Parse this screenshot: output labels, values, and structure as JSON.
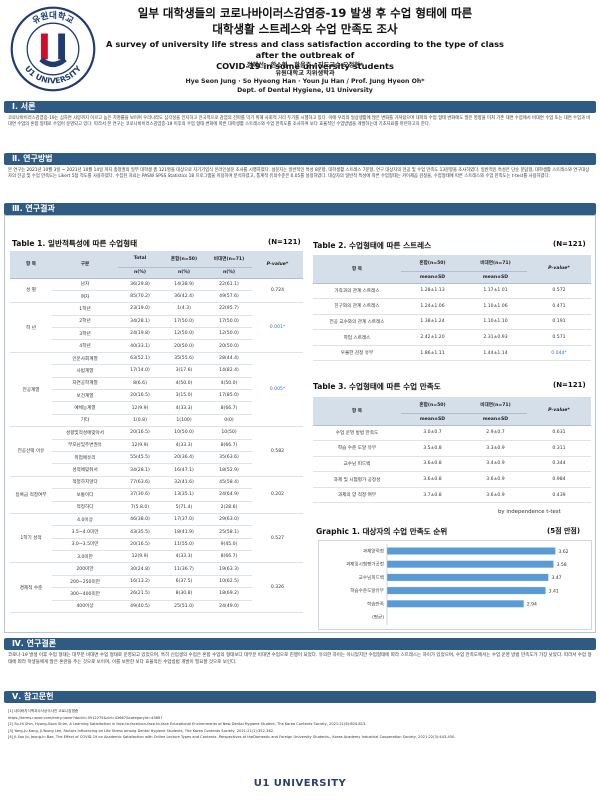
{
  "header": {
    "title_ko": "일부 대학생들의 코로나바이러스감염증-19 발생 후 수업 형태에 따른",
    "title_ko2": "대학생활 스트레스와 수업 만족도 조사",
    "title_en": "A survey of university life stress and class satisfaction according to the type of class after the outbreak of",
    "title_en2": "COVID-19 in some university students",
    "authors_ko": "정혜선 · 한소형 · 한윤주 / 지도교수 오정현*",
    "dept_ko": "유원대학교 치위생학과",
    "authors_en": "Hye Seon Jung · So Hyeong Han · Youn Ju Han / Prof. Jung Hyeon Oh*",
    "dept_en": "Dept. of Dental Hygiene, U1 University",
    "logo_ring_top": "유원대학교",
    "logo_ring_bottom": "U1 UNIVERSITY"
  },
  "sections": {
    "s1": "Ⅰ. 서론",
    "s2": "Ⅱ. 연구방법",
    "s3": "Ⅲ. 연구결과",
    "s4": "Ⅳ. 연구결론",
    "s5": "Ⅴ. 참고문헌"
  },
  "intro_text": "코로나바이러스감염증-19는 심하면 사망까지 이르고 높은 치명률을 보이며 우리나라도 심각성을 인지하고 전국적으로 감염의 전파를 막기 위해 사회적 거리 두기를 시행하고 있다. 이에 우리의 일상생활에 많은 변화를 가져왔으며 대학의 수업 형태 변화에도 많은 영향을 미쳐 기존 대면 수업에서 비대면 수업 또는 대면 수업과 비대면 수업의 혼합 형태로 수업이 운영되고 있다. 따라서 본 연구는 코로나바이러스감염증-19 이후의 수업 형태 변화에 따른 대학생활 스트레스와 수업 만족도를 조사하여 보다 효율적인 수업방법을 개발하는데 기초자료를 마련하고자 한다.",
  "method_text": "본 연구는 2021년 10월 3일 ~ 2021년 10월 14일 까지 충청권의 일부 대학생 총 121명을 대상으로 자기기입식 온라인설문 조사를 시행하였다. 설문지는 일반적인 특성 8문항, 대학생활 스트레스 7문항, 연구 대상자의 전공 및 수업 만족도 13문항을 조사하였다. 일반적인 특성은 단순 문답형, 대학생활 스트레스와 연구대상자의 전공 및 수업 만족도는 Likert 5점 척도를 사용하였다. 수집된 자료는 PASW SPSS Statistics 18 프로그램을 이용하여 분석하였고, 통계적 유의수준은 0.05를 설정하였다. 대상자의 일반적 특성에 따른 수업형태는 카이제곱 검정을, 수업형태에 따른 스트레스와 수업 만족도는 t-test를 사용하였다.",
  "table1": {
    "title": "Table 1. 일반적특성에 따른 수업형태",
    "n": "(N=121)",
    "h_item": "항 목",
    "h_group": "구분",
    "h_total": "Total",
    "h_mixed": "혼합(n=50)",
    "h_online": "비대면(n=71)",
    "h_p": "P-value*",
    "h_sub": "n(%)",
    "rows": [
      {
        "item": "성 별",
        "span": 2,
        "p": "0.724",
        "group": "남자",
        "total": "36(29.8)",
        "mixed": "14(38.9)",
        "online": "22(61.1)"
      },
      {
        "group": "여자",
        "total": "85(70.2)",
        "mixed": "36(42.4)",
        "online": "49(57.6)"
      },
      {
        "item": "학 년",
        "span": 4,
        "p": "0.001*",
        "sig": true,
        "group": "1학년",
        "total": "23(19.0)",
        "mixed": "1(4.3)",
        "online": "22(95.7)"
      },
      {
        "group": "2학년",
        "total": "34(28.1)",
        "mixed": "17(50.0)",
        "online": "17(50.0)"
      },
      {
        "group": "3학년",
        "total": "24(19.8)",
        "mixed": "12(50.0)",
        "online": "12(50.0)"
      },
      {
        "group": "4학년",
        "total": "40(33.1)",
        "mixed": "20(50.0)",
        "online": "20(50.0)"
      },
      {
        "item": "전공계열",
        "span": 6,
        "p": "0.005*",
        "sig": true,
        "group": "인문사회계열",
        "total": "63(52.1)",
        "mixed": "35(55.6)",
        "online": "28(44.4)"
      },
      {
        "group": "사범계열",
        "total": "17(14.0)",
        "mixed": "3(17.6)",
        "online": "14(82.4)"
      },
      {
        "group": "자연공학계열",
        "total": "8(6.6)",
        "mixed": "4(50.0)",
        "online": "4(50.0)"
      },
      {
        "group": "보건계열",
        "total": "20(16.5)",
        "mixed": "3(15.0)",
        "online": "17(85.0)"
      },
      {
        "group": "예체능계열",
        "total": "12(9.9)",
        "mixed": "4(33.3)",
        "online": "8(66.7)"
      },
      {
        "group": "기타",
        "total": "1(0.8)",
        "mixed": "1(100)",
        "online": "0(0)"
      },
      {
        "item": "전공선택 이유",
        "span": 4,
        "p": "0.582",
        "group": "성향및적성에맞아서",
        "total": "20(16.5)",
        "mixed": "10(50.0)",
        "online": "10(50)"
      },
      {
        "group": "부모님및주변권유",
        "total": "12(9.9)",
        "mixed": "4(33.3)",
        "online": "8(66.7)"
      },
      {
        "group": "취업에유리",
        "total": "55(45.5)",
        "mixed": "20(36.4)",
        "online": "35(63.6)"
      },
      {
        "group": "성적에맞춰서",
        "total": "34(28.1)",
        "mixed": "16(47.1)",
        "online": "18(52.9)"
      },
      {
        "item": "등록금 적정여부",
        "span": 3,
        "p": "0.202",
        "group": "적정하지않다",
        "total": "77(63.6)",
        "mixed": "32(41.6)",
        "online": "45(58.4)"
      },
      {
        "group": "보통이다",
        "total": "37(30.6)",
        "mixed": "13(35.1)",
        "online": "24(64.9)"
      },
      {
        "group": "적정하다",
        "total": "7(5.8.0)",
        "mixed": "5(71.4)",
        "online": "2(28.6)"
      },
      {
        "item": "1학기 성적",
        "span": 4,
        "p": "0.527",
        "group": "4.0이상",
        "total": "46(38.0)",
        "mixed": "17(37.0)",
        "online": "29(63.0)"
      },
      {
        "group": "3.5~4.0미만",
        "total": "43(35.5)",
        "mixed": "18(41.9)",
        "online": "25(58.1)"
      },
      {
        "group": "3.0~3.5미만",
        "total": "20(16.5)",
        "mixed": "11(55.0)",
        "online": "9(45.0)"
      },
      {
        "group": "3.0미만",
        "total": "12(9.9)",
        "mixed": "4(33.3)",
        "online": "8(66.7)"
      },
      {
        "item": "경제적 수준",
        "span": 4,
        "p": "0.326",
        "group": "200미만",
        "total": "30(24.8)",
        "mixed": "11(36.7)",
        "online": "19(63.3)"
      },
      {
        "group": "200~250미만",
        "total": "16(13.2)",
        "mixed": "6(37.5)",
        "online": "10(62.5)"
      },
      {
        "group": "300~400미만",
        "total": "26(21.5)",
        "mixed": "8(30.8)",
        "online": "18(69.2)"
      },
      {
        "group": "400이상",
        "total": "49(40.5)",
        "mixed": "25(51.0)",
        "online": "24(49.0)"
      }
    ]
  },
  "table2": {
    "title": "Table 2. 수업형태에 따른 스트레스",
    "n": "(N=121)",
    "h_item": "항 목",
    "h_mixed": "혼합(n=50)",
    "h_online": "비대면(n=71)",
    "h_p": "P-value*",
    "h_sub": "mean±SD",
    "rows": [
      {
        "item": "가족과의 관계 스트레스",
        "mixed": "1.28±1.13",
        "online": "1.17±1.01",
        "p": "0.572"
      },
      {
        "item": "친구와의 관계 스트레스",
        "mixed": "1.24±1.06",
        "online": "1.10±1.06",
        "p": "0.471"
      },
      {
        "item": "전공 교수와의 관계 스트레스",
        "mixed": "1.38±1.24",
        "online": "1.10±1.10",
        "p": "0.191"
      },
      {
        "item": "학업 스트레스",
        "mixed": "2.42±1.20",
        "online": "2.31±0.93",
        "p": "0.571"
      },
      {
        "item": "우울한 감정 유무",
        "mixed": "1.86±1.11",
        "online": "1.44±1.14",
        "p": "0.044*",
        "sig": true
      }
    ]
  },
  "table3": {
    "title": "Table 3. 수업형태에 따른 수업 만족도",
    "n": "(N=121)",
    "h_item": "항 목",
    "h_mixed": "혼합(n=50)",
    "h_online": "비대면(n=71)",
    "h_p": "P-value*",
    "h_sub": "mean±SD",
    "rows": [
      {
        "item": "수업 운영 방법 만족도",
        "mixed": "3.0±0.7",
        "online": "2.9±0.7",
        "p": "0.631"
      },
      {
        "item": "학습 수준 도달 유무",
        "mixed": "3.5±0.8",
        "online": "3.3±0.9",
        "p": "0.311"
      },
      {
        "item": "교수님 피드백",
        "mixed": "3.6±0.8",
        "online": "3.4±0.9",
        "p": "0.344"
      },
      {
        "item": "과제 및 시험평가 공정성",
        "mixed": "3.6±0.8",
        "online": "3.6±0.9",
        "p": "0.984"
      },
      {
        "item": "과제의 양 적정 여부",
        "mixed": "3.7±0.8",
        "online": "3.6±0.9",
        "p": "0.439"
      }
    ],
    "footnote": "by independence t-test"
  },
  "graph": {
    "title": "Graphic 1. 대상자의 수업 만족도 순위",
    "scale_note": "(5점 만점)",
    "color": "#5b9bd5",
    "xmax": 5,
    "items": [
      {
        "label": "과제양적정",
        "value": 3.62
      },
      {
        "label": "과제및시험평가공정",
        "value": 3.58
      },
      {
        "label": "교수님피드백",
        "value": 3.47
      },
      {
        "label": "학습수준도달유무",
        "value": 3.41
      },
      {
        "label": "학습만족",
        "value": 2.94
      },
      {
        "label": "(평균)",
        "value": 0
      }
    ]
  },
  "conclusion_text": "코로나-19 발생 이후 수업 형태는 대부분 비대면 수업 형태로 운영되고 있었으며, 특히 신입생의 수업은 혼합 수업의 형태보다 대부분 비대면 수업으로 진행이 되었다. 유의한 차이는 아니었지만 수업형태에 따라 스트레스는 차이가 있었으며, 수업 만족도에서는 수업 운영 방법 만족도가 가장 낮았다. 따라서 수업 형태에 따라 학생들에게 많은 혼란을 주는 것으로 보이며, 이를 보완한 보다 효율적인 수업방법 개발이 필요할 것으로 보인다.",
  "references": [
    "[1] 네이버지식백과사사상식사전 코로나감염증",
    "https://terms.naver.com/entry.naver?docId=5912275&cid=43667&categoryId=43667",
    "[2] So-Hi Shin, Hyang-Soon Shim, A Learning Satisfaction in face-to-face/non-face-to-face Educational Environments of New Dental Hygiene Student, The Korea Contents Society, 2021:21(6):804-813.",
    "[3] Yong-Ju Kang, Ji-Young Lee, Factors Influencing on Life Stress among Dental Hygiene Students, The Korea Contents Society, 2021:21(1):352-362.",
    "[4] Ji-Soo Jo, Jeong-In Bae, The Effect of COVID-19 on Academic Satisfaction with Online Lecture Types and Contents -Perspectives of theDomestic and Foreign University Students-, Korea Academy Industrial Cooperation Society, 2021:22(3):443-450."
  ],
  "footer": {
    "brand": "U1 UNIVERSITY"
  }
}
